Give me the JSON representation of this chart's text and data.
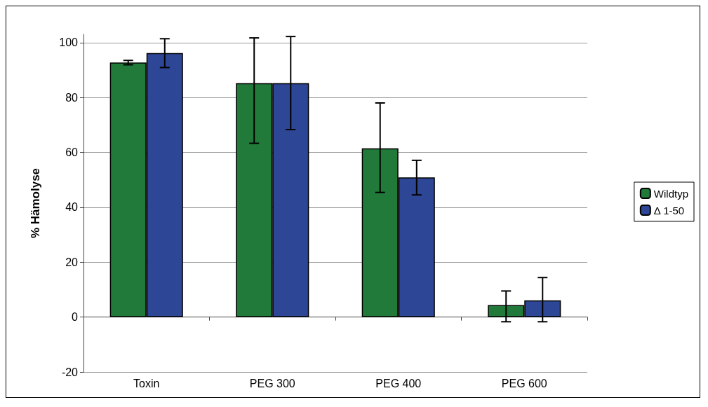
{
  "chart_data": {
    "type": "bar",
    "ylabel": "% Hämolyse",
    "categories": [
      "Toxin",
      "PEG 300",
      "PEG 400",
      "PEG 600"
    ],
    "series": [
      {
        "name": "Wildtyp",
        "color": "#217a3a",
        "values": [
          92.7,
          85.2,
          61.5,
          4.4
        ],
        "errors": [
          [
            91.9,
            93.5
          ],
          [
            63.3,
            101.7
          ],
          [
            45.4,
            78
          ],
          [
            -1.7,
            9.5
          ]
        ]
      },
      {
        "name": "Δ 1-50",
        "color": "#2e4696",
        "values": [
          96.2,
          85.2,
          50.9,
          6.1
        ],
        "errors": [
          [
            90.9,
            101.4
          ],
          [
            68.3,
            102.2
          ],
          [
            44.5,
            57.1
          ],
          [
            -1.7,
            14.4
          ]
        ]
      }
    ],
    "ylim": [
      -20,
      103
    ],
    "yticks": [
      -20,
      0,
      20,
      40,
      60,
      80,
      100
    ],
    "grid": "y",
    "legend": "right"
  }
}
